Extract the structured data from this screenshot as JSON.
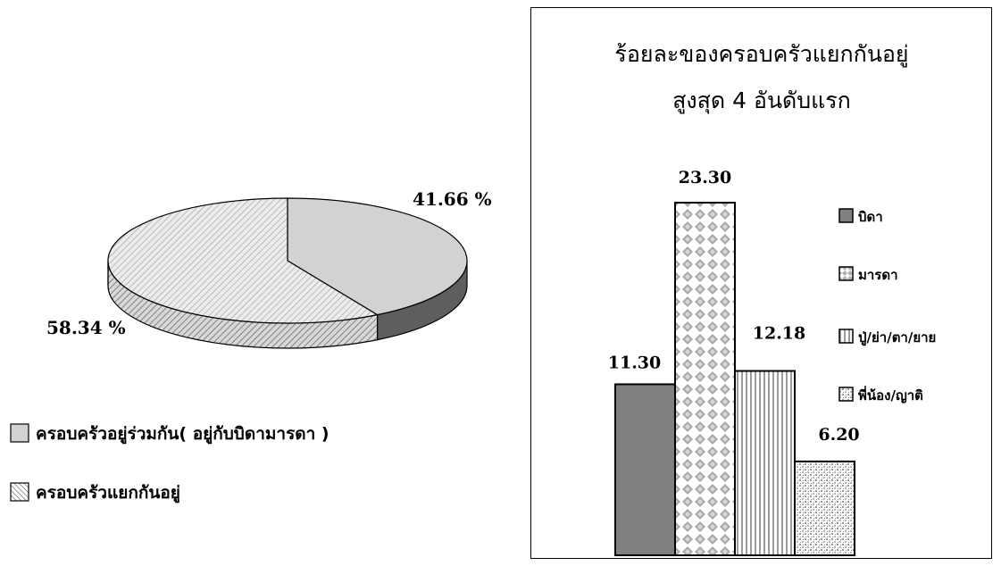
{
  "chart_data": [
    {
      "type": "pie",
      "title": "",
      "slices": [
        {
          "name": "ครอบครัวอยู่ร่วมกัน( อยู่กับบิดามารดา )",
          "value": 41.66,
          "label": "41.66 %",
          "color": "#d2d2d2",
          "side_color": "#5e5e5e",
          "pattern": "solid"
        },
        {
          "name": "ครอบครัวแยกกันอยู่",
          "value": 58.34,
          "label": "58.34 %",
          "color": "#e6e6e6",
          "side_color": "#bdbdbd",
          "pattern": "diagonal-stripes"
        }
      ],
      "legend_position": "bottom-left"
    },
    {
      "type": "bar",
      "title_lines": [
        "ร้อยละของครอบครัวแยกกันอยู่",
        "สูงสุด 4 อันดับแรก"
      ],
      "categories": [
        "บิดา",
        "มารดา",
        "ปู่/ย่า/ตา/ยาย",
        "พี่น้อง/ญาติ"
      ],
      "values": [
        11.3,
        23.3,
        12.18,
        6.2
      ],
      "value_labels": [
        "11.30",
        "23.30",
        "12.18",
        "6.20"
      ],
      "patterns": [
        "solid-dark",
        "diamond-check",
        "vertical-stripes",
        "speckle"
      ],
      "ylim": [
        0,
        25
      ],
      "xlabel": "",
      "ylabel": "",
      "legend_position": "right",
      "grid": false
    }
  ]
}
